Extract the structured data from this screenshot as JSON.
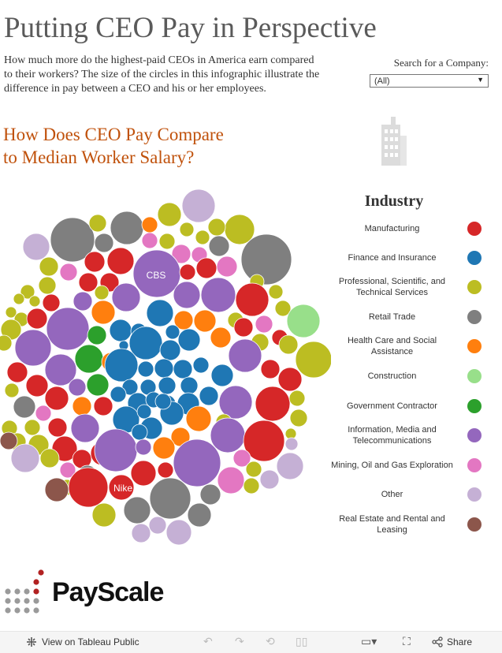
{
  "title": "Putting CEO Pay in Perspective",
  "intro": "How much more do the highest-paid CEOs in America earn compared to their workers? The size of the circles in this infographic illustrate the difference in pay between a CEO and his or her employees.",
  "search": {
    "label": "Search for a Company:",
    "value": "(All)"
  },
  "subtitle_line1": "How Does CEO Pay Compare",
  "subtitle_line2": "to Median Worker Salary?",
  "bubble_labels": {
    "cbs": "CBS",
    "nike": "Nike"
  },
  "legend": {
    "title": "Industry",
    "items": [
      {
        "label": "Manufacturing",
        "color": "#d62728"
      },
      {
        "label": "Finance and Insurance",
        "color": "#1f77b4"
      },
      {
        "label": "Professional, Scientific, and Technical Services",
        "color": "#bcbd22"
      },
      {
        "label": "Retail Trade",
        "color": "#7f7f7f"
      },
      {
        "label": "Health Care and Social Assistance",
        "color": "#ff7f0e"
      },
      {
        "label": "Construction",
        "color": "#98df8a"
      },
      {
        "label": "Government Contractor",
        "color": "#2ca02c"
      },
      {
        "label": "Information, Media and Telecommunications",
        "color": "#9467bd"
      },
      {
        "label": "Mining, Oil and Gas Exploration",
        "color": "#e377c2"
      },
      {
        "label": "Other",
        "color": "#c5b0d5"
      },
      {
        "label": "Real Estate and Rental and Leasing",
        "color": "#8c564b"
      }
    ]
  },
  "logo": {
    "text": "PayScale"
  },
  "footer": {
    "view_label": "View on Tableau Public",
    "share_label": "Share"
  }
}
